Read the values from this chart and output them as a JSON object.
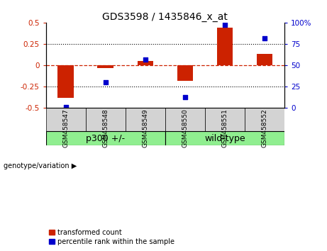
{
  "title": "GDS3598 / 1435846_x_at",
  "samples": [
    "GSM458547",
    "GSM458548",
    "GSM458549",
    "GSM458550",
    "GSM458551",
    "GSM458552"
  ],
  "transformed_count": [
    -0.38,
    -0.03,
    0.05,
    -0.18,
    0.44,
    0.13
  ],
  "percentile_rank": [
    1,
    30,
    57,
    13,
    97,
    82
  ],
  "group_bg_color": "#90EE90",
  "sample_bg_color": "#d3d3d3",
  "bar_color": "#cc2200",
  "dot_color": "#0000cc",
  "left_ylim": [
    -0.5,
    0.5
  ],
  "right_ylim": [
    0,
    100
  ],
  "left_yticks": [
    -0.5,
    -0.25,
    0,
    0.25,
    0.5
  ],
  "right_yticks": [
    0,
    25,
    50,
    75,
    100
  ],
  "left_yticklabels": [
    "-0.5",
    "-0.25",
    "0",
    "0.25",
    "0.5"
  ],
  "right_yticklabels": [
    "0",
    "25",
    "50",
    "75",
    "100%"
  ],
  "dotted_hlines": [
    -0.25,
    0.25
  ],
  "groups": [
    {
      "label": "p300 +/-",
      "start": 0,
      "end": 3
    },
    {
      "label": "wild-type",
      "start": 3,
      "end": 6
    }
  ],
  "legend_items": [
    {
      "label": "transformed count",
      "color": "#cc2200"
    },
    {
      "label": "percentile rank within the sample",
      "color": "#0000cc"
    }
  ],
  "bar_width": 0.4,
  "dot_size": 25,
  "title_fontsize": 10,
  "tick_fontsize": 7.5,
  "label_fontsize": 7,
  "group_fontsize": 9,
  "sample_fontsize": 6.5
}
